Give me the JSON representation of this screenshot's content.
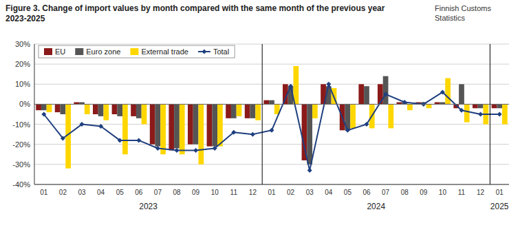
{
  "chart_data": {
    "type": "bar",
    "title": "Figure 3. Change of import values by month compared with the same month of the previous year 2023-2025",
    "annotations": [
      "Finnish Customs\nStatistics"
    ],
    "categories": [
      "01",
      "02",
      "03",
      "04",
      "05",
      "06",
      "07",
      "08",
      "09",
      "10",
      "11",
      "12",
      "01",
      "02",
      "03",
      "04",
      "05",
      "06",
      "07",
      "08",
      "09",
      "10",
      "11",
      "12",
      "01"
    ],
    "groups": [
      {
        "label": "2023",
        "size": 12
      },
      {
        "label": "2024",
        "size": 12
      },
      {
        "label": "2025",
        "size": 1
      }
    ],
    "series": [
      {
        "name": "EU",
        "type": "bar",
        "color": "#8B1A1A",
        "values": [
          -3,
          -4,
          1,
          -5,
          -5,
          -6,
          -20,
          -23,
          -20,
          -21,
          -7,
          -7,
          2,
          10,
          -28,
          10,
          -13,
          10,
          10,
          1,
          1,
          1,
          -2,
          -2,
          -2
        ]
      },
      {
        "name": "Euro zone",
        "type": "bar",
        "color": "#555555",
        "values": [
          -3,
          -5,
          1,
          -6,
          -6,
          -7,
          -21,
          -22,
          -20,
          -21,
          -7,
          -7,
          2,
          9,
          -30,
          9,
          -13,
          9,
          14,
          1,
          1,
          1,
          10,
          -2,
          -2
        ]
      },
      {
        "name": "External trade",
        "type": "bar",
        "color": "#FFD700",
        "values": [
          -4,
          -32,
          -5,
          -8,
          -25,
          -10,
          -25,
          -25,
          -30,
          -21,
          -6,
          -8,
          -5,
          19,
          -7,
          8,
          -12,
          -12,
          -12,
          -3,
          -2,
          13,
          -9,
          -10,
          -10
        ]
      },
      {
        "name": "Total",
        "type": "line",
        "color": "#1F3F7F",
        "marker": "diamond",
        "values": [
          -5,
          -17,
          -10,
          -11,
          -18,
          -18,
          -22,
          -23,
          -23,
          -22,
          -14,
          -15,
          -13,
          9,
          -33,
          10,
          -13,
          -10,
          5,
          1,
          0,
          6,
          -3,
          -5,
          -5
        ]
      }
    ],
    "ylim": [
      -40,
      30
    ],
    "yticks": [
      {
        "value": -40,
        "label": "-40%"
      },
      {
        "value": -30,
        "label": "-30%"
      },
      {
        "value": -20,
        "label": "-20%"
      },
      {
        "value": -10,
        "label": "-10%"
      },
      {
        "value": 0,
        "label": "0%"
      },
      {
        "value": 10,
        "label": "10%"
      },
      {
        "value": 20,
        "label": "20%"
      },
      {
        "value": 30,
        "label": "30%"
      }
    ],
    "grid": true,
    "legend": "upper-left"
  }
}
